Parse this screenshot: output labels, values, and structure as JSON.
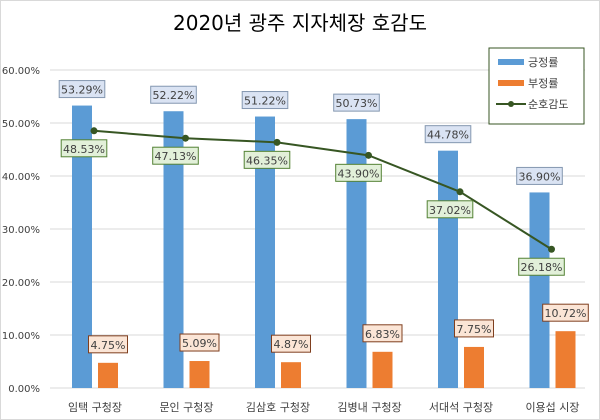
{
  "chart_data": {
    "type": "bar",
    "title": "2020년 광주 지자체장 호감도",
    "categories": [
      "임택 구청장",
      "문인 구청장",
      "김삼호 구청장",
      "김병내 구청장",
      "서대석 구청장",
      "이용섭 시장"
    ],
    "series": [
      {
        "name": "긍정률",
        "type": "bar",
        "color": "#5b9bd5",
        "values": [
          53.29,
          52.22,
          51.22,
          50.73,
          44.78,
          36.9
        ],
        "labels": [
          "53.29%",
          "52.22%",
          "51.22%",
          "50.73%",
          "44.78%",
          "36.90%"
        ]
      },
      {
        "name": "부정률",
        "type": "bar",
        "color": "#ed7d31",
        "values": [
          4.75,
          5.09,
          4.87,
          6.83,
          7.75,
          10.72
        ],
        "labels": [
          "4.75%",
          "5.09%",
          "4.87%",
          "6.83%",
          "7.75%",
          "10.72%"
        ]
      },
      {
        "name": "순호감도",
        "type": "line",
        "color": "#375623",
        "values": [
          48.53,
          47.13,
          46.35,
          43.9,
          37.02,
          26.18
        ],
        "labels": [
          "48.53%",
          "47.13%",
          "46.35%",
          "43.90%",
          "37.02%",
          "26.18%"
        ]
      }
    ],
    "yticks": [
      "0.00%",
      "10.00%",
      "20.00%",
      "30.00%",
      "40.00%",
      "50.00%",
      "60.00%"
    ],
    "ylim": [
      0,
      60
    ],
    "grid": true,
    "legend": "top-right"
  }
}
